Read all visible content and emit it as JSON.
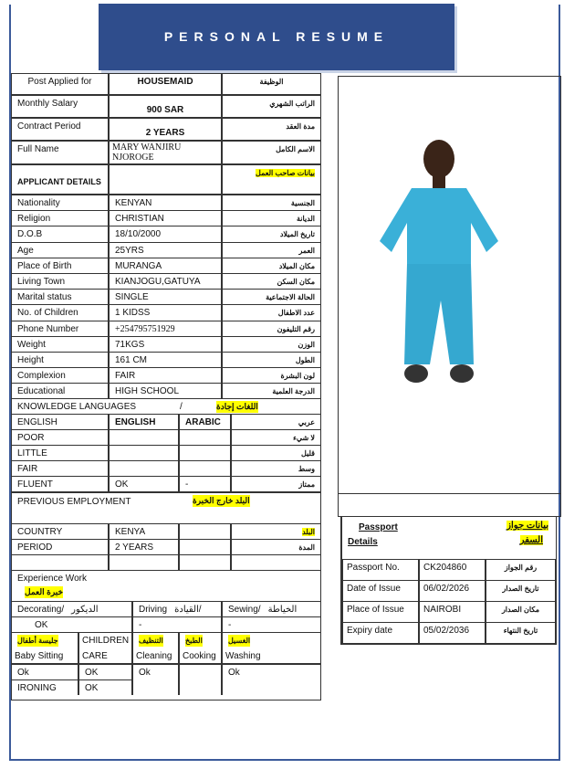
{
  "title": "PERSONAL RESUME",
  "top": [
    {
      "label": "Post Applied for",
      "value": "HOUSEMAID",
      "ar": "الوظيفة"
    },
    {
      "label": "Monthly Salary",
      "value": "900 SAR",
      "ar": "الراتب الشهري"
    },
    {
      "label": "Contract Period",
      "value": "2 YEARS",
      "ar": "مدة العقد"
    },
    {
      "label": "Full Name",
      "value": "MARY WANJIRU NJOROGE",
      "ar": "الاسم الكامل"
    }
  ],
  "applicant_details": {
    "label": "APPLICANT DETAILS",
    "ar": "بيانات صاحب العمل"
  },
  "details": [
    {
      "label": "Nationality",
      "value": "KENYAN",
      "ar": "الجنسية"
    },
    {
      "label": "Religion",
      "value": "CHRISTIAN",
      "ar": "الديانة"
    },
    {
      "label": "D.O.B",
      "value": "18/10/2000",
      "ar": "تاريخ الميلاد"
    },
    {
      "label": "Age",
      "value": "25YRS",
      "ar": "العمر"
    },
    {
      "label": "Place of Birth",
      "value": "MURANGA",
      "ar": "مكان الميلاد"
    },
    {
      "label": "Living Town",
      "value": "KIANJOGU,GATUYA",
      "ar": "مكان السكن"
    },
    {
      "label": "Marital status",
      "value": "SINGLE",
      "ar": "الحالة الاجتماعية"
    },
    {
      "label": "No. of Children",
      "value": "1 KIDSS",
      "ar": "عدد الاطفال"
    },
    {
      "label": "Phone Number",
      "value": "+254795751929",
      "ar": "رقم التليفون"
    },
    {
      "label": "Weight",
      "value": "71KGS",
      "ar": "الوزن"
    },
    {
      "label": "Height",
      "value": "161 CM",
      "ar": "الطول"
    },
    {
      "label": "Complexion",
      "value": "FAIR",
      "ar": "لون البشرة"
    },
    {
      "label": "Educational",
      "value": "HIGH SCHOOL",
      "ar": "الدرجة العلمية"
    }
  ],
  "languages": {
    "label": "KNOWLEDGE LANGUAGES",
    "sep": "/",
    "ar": "اللغات إجادة",
    "header": {
      "label": "ENGLISH",
      "english": "ENGLISH",
      "arabic": "ARABIC",
      "ar": "عربي"
    },
    "rows": [
      {
        "label": "POOR",
        "english": "",
        "arabic": "",
        "ar": "لا شيء"
      },
      {
        "label": "LITTLE",
        "english": "",
        "arabic": "",
        "ar": "قليل"
      },
      {
        "label": "FAIR",
        "english": "",
        "arabic": "",
        "ar": "وسط"
      },
      {
        "label": "FLUENT",
        "english": "OK",
        "arabic": "-",
        "ar": "ممتاز"
      }
    ]
  },
  "previous_employment": {
    "label": "PREVIOUS  EMPLOYMENT",
    "ar": "البلد خارج الخبرة",
    "country": {
      "label": "COUNTRY",
      "value": "KENYA",
      "ar": "البلد"
    },
    "period": {
      "label": "PERIOD",
      "value": "2 YEARS",
      "ar": "المدة"
    }
  },
  "experience": {
    "label": "Experience Work",
    "ar": "خبرة العمل",
    "decorating": {
      "label": "Decorating/",
      "ar": "الديكور",
      "value": "OK"
    },
    "driving": {
      "label": "Driving",
      "ar": "القيادة/",
      "value": "-"
    },
    "sewing": {
      "label": "Sewing/",
      "ar": "الخياطة",
      "value": "-"
    },
    "baby": {
      "ar": "جليسة أطفال",
      "label": "Baby Sitting",
      "value": "Ok"
    },
    "children": {
      "label1": "CHILDREN",
      "label2": "CARE",
      "value": "OK"
    },
    "cleaning": {
      "ar": "التنظيف",
      "label": "Cleaning",
      "value": "Ok"
    },
    "cooking": {
      "ar": "الطبخ",
      "label": "Cooking",
      "value": ""
    },
    "washing": {
      "ar": "الغسيل",
      "label": "Washing",
      "value": "Ok"
    },
    "ironing": {
      "label": "IRONING",
      "value": "OK"
    }
  },
  "passport": {
    "label1": "Passport",
    "label2": "Details",
    "ar1": "بيانات جواز",
    "ar2": "السفر",
    "rows": [
      {
        "label": "Passport No.",
        "value": "CK204860",
        "ar": "رقم الجواز"
      },
      {
        "label": "Date of Issue",
        "value": "06/02/2026",
        "ar": "تاريخ الصدار"
      },
      {
        "label": "Place of Issue",
        "value": "NAIROBI",
        "ar": "مكان الصدار"
      },
      {
        "label": "Expiry date",
        "value": "05/02/2036",
        "ar": "تاريخ النتهاء"
      }
    ]
  },
  "colors": {
    "banner": "#2f4d8c",
    "scrubs": "#3ab0d8",
    "highlight": "#ffff00"
  }
}
